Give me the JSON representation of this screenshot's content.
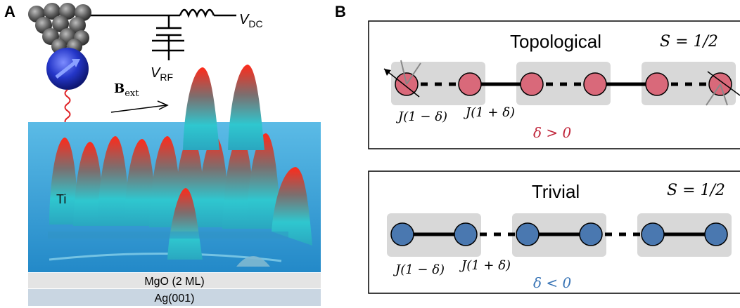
{
  "panel_a": {
    "letter": "A",
    "v_dc": {
      "main": "V",
      "sub": "DC"
    },
    "v_rf": {
      "main": "V",
      "sub": "RF"
    },
    "b_ext": {
      "main": "B",
      "sub": "ext"
    },
    "atom_label": "Ti",
    "layer_mgo": "MgO (2 ML)",
    "layer_ag": "Ag(001)"
  },
  "panel_b": {
    "letter": "B",
    "topological": {
      "title": "Topological",
      "spin": "S = 1/2",
      "coupling_weak": "J(1 − δ)",
      "coupling_strong": "J(1 + δ)",
      "condition": "δ > 0"
    },
    "trivial": {
      "title": "Trivial",
      "spin": "S = 1/2",
      "coupling_weak": "J(1 − δ)",
      "coupling_strong": "J(1 + δ)",
      "condition": "δ < 0"
    }
  },
  "colors": {
    "surface": "#3fa7dc",
    "peak_red": "#e83a2a",
    "peak_cyan": "#3fd0d6",
    "topological_site": "#d9697a",
    "trivial_site": "#4a78b0",
    "delta_pos": "#c0263b",
    "delta_neg": "#3a75b6",
    "box_gray": "#d8d8d8"
  }
}
